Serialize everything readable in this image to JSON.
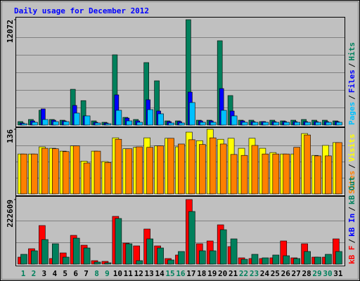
{
  "chart_data": {
    "type": "bar",
    "title": "Daily usage for December 2012",
    "categories": [
      "1",
      "2",
      "3",
      "4",
      "5",
      "6",
      "7",
      "8",
      "9",
      "10",
      "11",
      "12",
      "13",
      "14",
      "15",
      "16",
      "17",
      "18",
      "19",
      "20",
      "21",
      "22",
      "23",
      "24",
      "25",
      "26",
      "27",
      "28",
      "29",
      "30",
      "31"
    ],
    "weekend": [
      0,
      1,
      7,
      8,
      14,
      15,
      21,
      22,
      28,
      29
    ],
    "weekend_color": "#00805c",
    "weekday_color": "#000000",
    "legend_separator": "/",
    "panels": [
      {
        "ylim": [
          0,
          12072
        ],
        "yticks": [
          12072
        ],
        "series": [
          {
            "name": "Pages",
            "color": "#00c0ff",
            "values": [
              160,
              320,
              640,
              400,
              400,
              1370,
              1050,
              240,
              160,
              1690,
              480,
              320,
              1770,
              1290,
              240,
              240,
              2580,
              320,
              320,
              1690,
              1050,
              320,
              320,
              320,
              320,
              320,
              320,
              320,
              320,
              320,
              320
            ]
          },
          {
            "name": "Files",
            "color": "#0000ff",
            "values": [
              240,
              480,
              1850,
              560,
              480,
              2250,
              1050,
              320,
              240,
              3460,
              800,
              480,
              2900,
              1610,
              400,
              400,
              3780,
              480,
              480,
              4180,
              1610,
              480,
              400,
              400,
              400,
              400,
              400,
              400,
              400,
              400,
              400
            ]
          },
          {
            "name": "Hits",
            "color": "#00805c",
            "values": [
              400,
              640,
              1700,
              640,
              560,
              4100,
              2800,
              480,
              320,
              8050,
              880,
              640,
              7160,
              5070,
              480,
              480,
              12072,
              560,
              560,
              9660,
              3380,
              560,
              560,
              400,
              560,
              480,
              560,
              640,
              560,
              560,
              480
            ]
          }
        ]
      },
      {
        "ylim": [
          0,
          136
        ],
        "yticks": [
          136
        ],
        "series": [
          {
            "name": "Sites",
            "color": "#ff8000",
            "values": [
              84,
              84,
              96,
              95,
              89,
              101,
              65,
              90,
              66,
              115,
              95,
              99,
              98,
              101,
              117,
              105,
              114,
              104,
              118,
              105,
              83,
              81,
              102,
              84,
              84,
              84,
              98,
              124,
              80,
              80,
              108
            ]
          },
          {
            "name": "Visits",
            "color": "#ffff00",
            "values": [
              84,
              84,
              99,
              96,
              90,
              101,
              69,
              90,
              68,
              118,
              95,
              98,
              118,
              101,
              117,
              99,
              130,
              112,
              136,
              115,
              117,
              96,
              117,
              96,
              87,
              84,
              84,
              127,
              81,
              102,
              108
            ]
          }
        ]
      },
      {
        "ylim": [
          0,
          222609
        ],
        "yticks": [
          222609
        ],
        "series": [
          {
            "name": "kB F",
            "color": "#ff0000",
            "values": [
              24200,
              53200,
              133000,
              19400,
              38700,
              99200,
              65300,
              12100,
              9700,
              164600,
              72600,
              62900,
              121000,
              62900,
              19400,
              31500,
              222609,
              70200,
              79900,
              135500,
              60500,
              21800,
              19400,
              19400,
              21800,
              79900,
              21800,
              70200,
              24200,
              24200,
              87100
            ]
          },
          {
            "name": "kB In",
            "color": "#0000ff"
          },
          {
            "name": "kB Out",
            "color": "#00805c",
            "values": [
              33900,
              46000,
              84700,
              70200,
              24200,
              89500,
              55700,
              7300,
              4800,
              157300,
              70200,
              12100,
              87100,
              55700,
              14500,
              43600,
              181500,
              46000,
              46000,
              118600,
              87100,
              16900,
              33900,
              21800,
              31500,
              29000,
              19400,
              43600,
              24200,
              33900,
              43600
            ]
          }
        ]
      }
    ]
  }
}
